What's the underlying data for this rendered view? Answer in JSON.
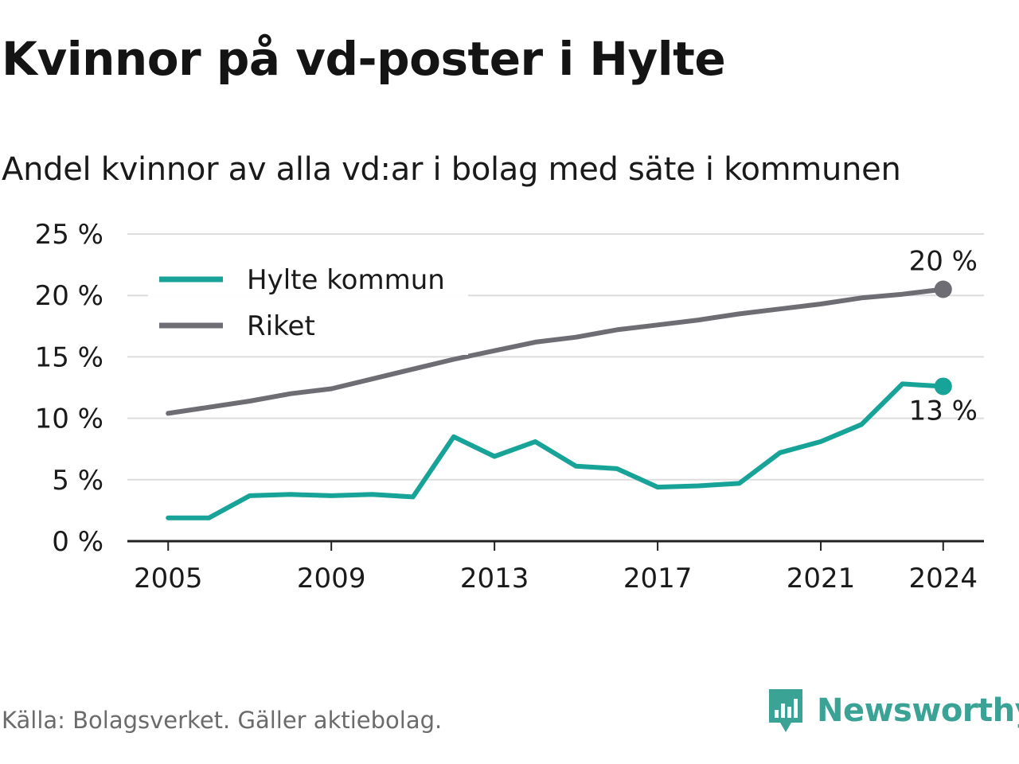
{
  "header": {
    "title": "Kvinnor på vd-poster i Hylte",
    "subtitle": "Andel kvinnor av alla vd:ar i bolag med säte i kommunen"
  },
  "footer": {
    "source": "Källa: Bolagsverket. Gäller aktiebolag.",
    "brand": "Newsworthy"
  },
  "colors": {
    "hylte": "#17a398",
    "riket": "#6e6d74",
    "grid": "#dddddd",
    "brand": "#3aa396"
  },
  "chart_data": {
    "type": "line",
    "x": [
      2005,
      2006,
      2007,
      2008,
      2009,
      2010,
      2011,
      2012,
      2013,
      2014,
      2015,
      2016,
      2017,
      2018,
      2019,
      2020,
      2021,
      2022,
      2023,
      2024
    ],
    "series": [
      {
        "name": "Hylte kommun",
        "color": "#17a398",
        "values": [
          1.9,
          1.9,
          3.7,
          3.8,
          3.7,
          3.8,
          3.6,
          8.5,
          6.9,
          8.1,
          6.1,
          5.9,
          4.4,
          4.5,
          4.7,
          7.2,
          8.1,
          9.5,
          12.8,
          12.6
        ],
        "end_label": "13 %"
      },
      {
        "name": "Riket",
        "color": "#6e6d74",
        "values": [
          10.4,
          10.9,
          11.4,
          12.0,
          12.4,
          13.2,
          14.0,
          14.8,
          15.5,
          16.2,
          16.6,
          17.2,
          17.6,
          18.0,
          18.5,
          18.9,
          19.3,
          19.8,
          20.1,
          20.5
        ],
        "end_label": "20 %"
      }
    ],
    "y_ticks": [
      "0 %",
      "5 %",
      "10 %",
      "15 %",
      "20 %",
      "25 %"
    ],
    "y_tick_values": [
      0,
      5,
      10,
      15,
      20,
      25
    ],
    "x_ticks": [
      "2005",
      "2009",
      "2013",
      "2017",
      "2021",
      "2024"
    ],
    "x_tick_values": [
      2005,
      2009,
      2013,
      2017,
      2021,
      2024
    ],
    "ylim": [
      0,
      25
    ],
    "xlim": [
      2004,
      2025
    ],
    "grid": true,
    "legend_position": "top-left"
  }
}
